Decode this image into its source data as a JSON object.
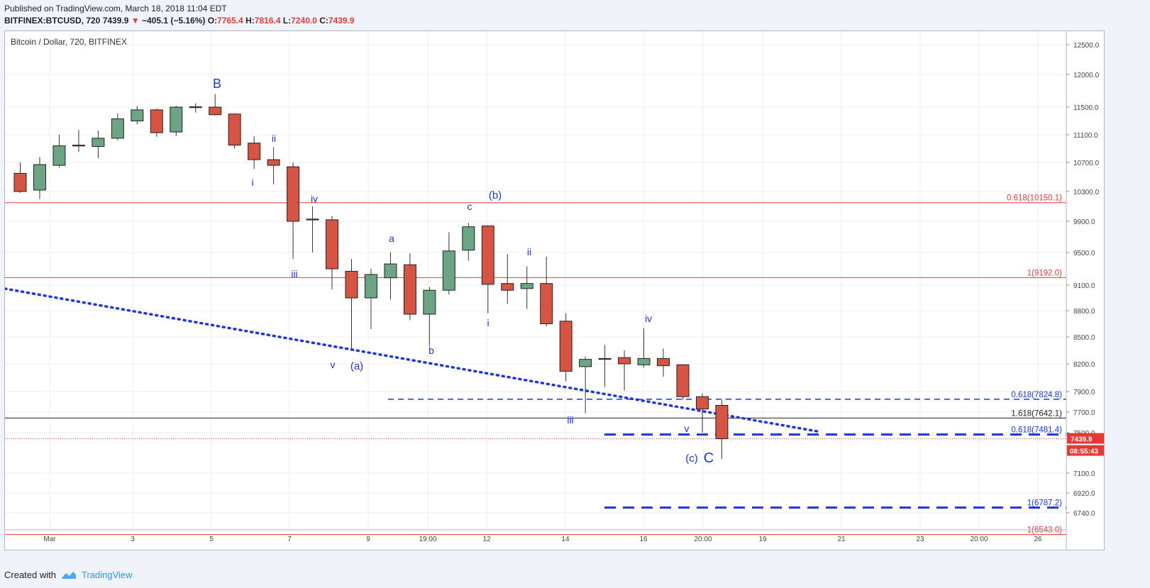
{
  "header": {
    "published": "Published on TradingView.com, March 18, 2018 11:04 EDT",
    "symbol": "BITFINEX:BTCUSD, 720",
    "last": "7439.9",
    "change": "−405.1 (−5.16%)",
    "open_label": "O:",
    "open": "7765.4",
    "high_label": "H:",
    "high": "7816.4",
    "low_label": "L:",
    "low": "7240.0",
    "close_label": "C:",
    "close": "7439.9"
  },
  "footer": {
    "created_with": "Created with",
    "brand": "TradingView"
  },
  "chart_data": {
    "type": "candlestick",
    "title": "Bitcoin / Dollar, 720, BITFINEX",
    "y_ticks": [
      12500,
      12000,
      11500,
      11100,
      10700,
      10300,
      9900,
      9500,
      9100,
      8800,
      8500,
      8200,
      7900,
      7700,
      7500,
      7100,
      6920,
      6740
    ],
    "x_ticks": [
      "Mar",
      "3",
      "5",
      "7",
      "9",
      "19:00",
      "12",
      "14",
      "16",
      "20:00",
      "19",
      "21",
      "23",
      "20:00",
      "26"
    ],
    "candles": [
      {
        "o": 10550,
        "h": 10700,
        "l": 10280,
        "c": 10300
      },
      {
        "o": 10320,
        "h": 10780,
        "l": 10200,
        "c": 10670
      },
      {
        "o": 10660,
        "h": 11100,
        "l": 10630,
        "c": 10940
      },
      {
        "o": 10940,
        "h": 11170,
        "l": 10850,
        "c": 10950
      },
      {
        "o": 10930,
        "h": 11160,
        "l": 10760,
        "c": 11050
      },
      {
        "o": 11050,
        "h": 11410,
        "l": 11020,
        "c": 11330
      },
      {
        "o": 11300,
        "h": 11520,
        "l": 11250,
        "c": 11460
      },
      {
        "o": 11460,
        "h": 11480,
        "l": 11070,
        "c": 11130
      },
      {
        "o": 11140,
        "h": 11520,
        "l": 11080,
        "c": 11500
      },
      {
        "o": 11505,
        "h": 11560,
        "l": 11420,
        "c": 11500
      },
      {
        "o": 11500,
        "h": 11700,
        "l": 11380,
        "c": 11390
      },
      {
        "o": 11400,
        "h": 11410,
        "l": 10900,
        "c": 10950
      },
      {
        "o": 10980,
        "h": 11080,
        "l": 10610,
        "c": 10740
      },
      {
        "o": 10740,
        "h": 10920,
        "l": 10400,
        "c": 10660
      },
      {
        "o": 10640,
        "h": 10700,
        "l": 9420,
        "c": 9900
      },
      {
        "o": 9920,
        "h": 10100,
        "l": 9500,
        "c": 9930
      },
      {
        "o": 9920,
        "h": 9970,
        "l": 9050,
        "c": 9300
      },
      {
        "o": 9270,
        "h": 9420,
        "l": 8350,
        "c": 8950
      },
      {
        "o": 8950,
        "h": 9300,
        "l": 8590,
        "c": 9230
      },
      {
        "o": 9190,
        "h": 9500,
        "l": 8930,
        "c": 9360
      },
      {
        "o": 9350,
        "h": 9490,
        "l": 8690,
        "c": 8760
      },
      {
        "o": 8760,
        "h": 9080,
        "l": 8400,
        "c": 9040
      },
      {
        "o": 9040,
        "h": 9760,
        "l": 8990,
        "c": 9520
      },
      {
        "o": 9530,
        "h": 9880,
        "l": 9400,
        "c": 9830
      },
      {
        "o": 9840,
        "h": 9850,
        "l": 8770,
        "c": 9110
      },
      {
        "o": 9120,
        "h": 9480,
        "l": 8880,
        "c": 9040
      },
      {
        "o": 9060,
        "h": 9330,
        "l": 8820,
        "c": 9120
      },
      {
        "o": 9120,
        "h": 9450,
        "l": 8620,
        "c": 8650
      },
      {
        "o": 8680,
        "h": 8770,
        "l": 8010,
        "c": 8120
      },
      {
        "o": 8170,
        "h": 8280,
        "l": 7690,
        "c": 8250
      },
      {
        "o": 8250,
        "h": 8410,
        "l": 7950,
        "c": 8260
      },
      {
        "o": 8270,
        "h": 8350,
        "l": 7910,
        "c": 8200
      },
      {
        "o": 8190,
        "h": 8600,
        "l": 8160,
        "c": 8260
      },
      {
        "o": 8260,
        "h": 8370,
        "l": 8060,
        "c": 8180
      },
      {
        "o": 8190,
        "h": 8190,
        "l": 7820,
        "c": 7850
      },
      {
        "o": 7850,
        "h": 7880,
        "l": 7500,
        "c": 7730
      },
      {
        "o": 7765.4,
        "h": 7816.4,
        "l": 7240.0,
        "c": 7439.9
      }
    ],
    "levels": [
      {
        "label": "0.618(10150.1)",
        "value": 10150.1,
        "color": "#e53935",
        "style": "solid"
      },
      {
        "label": "1(9192.0)",
        "value": 9192.0,
        "color": "#e53935",
        "style": "solid"
      },
      {
        "label": "0.618(7824.8)",
        "value": 7824.8,
        "color": "#1a35e8",
        "style": "dashed"
      },
      {
        "label": "1.618(7642.1)",
        "value": 7642.1,
        "color": "#222222",
        "style": "solid"
      },
      {
        "label": "0.618(7481.4)",
        "value": 7481.4,
        "color": "#1a35e8",
        "style": "long-dashed"
      },
      {
        "label": "1(6787.2)",
        "value": 6787.2,
        "color": "#1a35e8",
        "style": "long-dashed"
      },
      {
        "label": "1(6543.0)",
        "value": 6543.0,
        "color": "#e53935",
        "style": "solid"
      }
    ],
    "price_tag": "7439.9",
    "countdown": "08:55:43",
    "wave_labels": [
      "B",
      "ii",
      "i",
      "iv",
      "iii",
      "v",
      "(a)",
      "a",
      "b",
      "c",
      "(b)",
      "i",
      "ii",
      "iii",
      "iv",
      "v",
      "(c)",
      "C"
    ],
    "trendline": "dotted blue descending support"
  }
}
